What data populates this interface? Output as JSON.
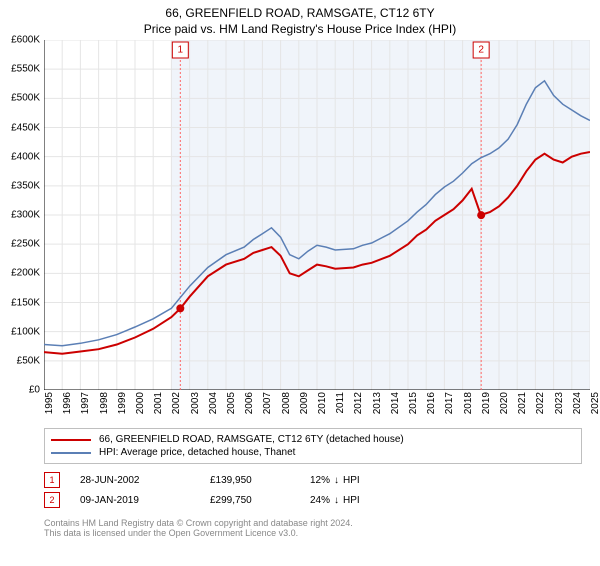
{
  "title": "66, GREENFIELD ROAD, RAMSGATE, CT12 6TY",
  "subtitle": "Price paid vs. HM Land Registry's House Price Index (HPI)",
  "chart": {
    "type": "line",
    "background_color": "#ffffff",
    "plot_background_color": "#f0f4fa",
    "plot_background_start_year": 2002,
    "grid_color": "#e5e5e5",
    "axis_color": "#000000",
    "ylim": [
      0,
      600000
    ],
    "ytick_step": 50000,
    "y_tick_labels": [
      "£0",
      "£50K",
      "£100K",
      "£150K",
      "£200K",
      "£250K",
      "£300K",
      "£350K",
      "£400K",
      "£450K",
      "£500K",
      "£550K",
      "£600K"
    ],
    "x_years": [
      1995,
      1996,
      1997,
      1998,
      1999,
      2000,
      2001,
      2002,
      2003,
      2004,
      2005,
      2006,
      2007,
      2008,
      2009,
      2010,
      2011,
      2012,
      2013,
      2014,
      2015,
      2016,
      2017,
      2018,
      2019,
      2020,
      2021,
      2022,
      2023,
      2024,
      2025
    ],
    "xlim": [
      1995,
      2025
    ],
    "series": [
      {
        "name": "property",
        "label": "66, GREENFIELD ROAD, RAMSGATE, CT12 6TY (detached house)",
        "color": "#cc0000",
        "line_width": 2,
        "points": [
          [
            1995,
            65000
          ],
          [
            1996,
            62000
          ],
          [
            1997,
            66000
          ],
          [
            1998,
            70000
          ],
          [
            1999,
            78000
          ],
          [
            2000,
            90000
          ],
          [
            2001,
            105000
          ],
          [
            2002,
            125000
          ],
          [
            2002.5,
            140000
          ],
          [
            2003,
            160000
          ],
          [
            2004,
            195000
          ],
          [
            2005,
            215000
          ],
          [
            2006,
            225000
          ],
          [
            2006.5,
            235000
          ],
          [
            2007,
            240000
          ],
          [
            2007.5,
            245000
          ],
          [
            2008,
            230000
          ],
          [
            2008.5,
            200000
          ],
          [
            2009,
            195000
          ],
          [
            2009.5,
            205000
          ],
          [
            2010,
            215000
          ],
          [
            2010.5,
            212000
          ],
          [
            2011,
            208000
          ],
          [
            2012,
            210000
          ],
          [
            2012.5,
            215000
          ],
          [
            2013,
            218000
          ],
          [
            2014,
            230000
          ],
          [
            2015,
            250000
          ],
          [
            2015.5,
            265000
          ],
          [
            2016,
            275000
          ],
          [
            2016.5,
            290000
          ],
          [
            2017,
            300000
          ],
          [
            2017.5,
            310000
          ],
          [
            2018,
            325000
          ],
          [
            2018.5,
            345000
          ],
          [
            2019,
            300000
          ],
          [
            2019.5,
            305000
          ],
          [
            2020,
            315000
          ],
          [
            2020.5,
            330000
          ],
          [
            2021,
            350000
          ],
          [
            2021.5,
            375000
          ],
          [
            2022,
            395000
          ],
          [
            2022.5,
            405000
          ],
          [
            2023,
            395000
          ],
          [
            2023.5,
            390000
          ],
          [
            2024,
            400000
          ],
          [
            2024.5,
            405000
          ],
          [
            2025,
            408000
          ]
        ]
      },
      {
        "name": "hpi",
        "label": "HPI: Average price, detached house, Thanet",
        "color": "#5b7fb5",
        "line_width": 1.5,
        "points": [
          [
            1995,
            78000
          ],
          [
            1996,
            76000
          ],
          [
            1997,
            80000
          ],
          [
            1998,
            86000
          ],
          [
            1999,
            95000
          ],
          [
            2000,
            108000
          ],
          [
            2001,
            122000
          ],
          [
            2002,
            140000
          ],
          [
            2003,
            178000
          ],
          [
            2004,
            210000
          ],
          [
            2005,
            232000
          ],
          [
            2006,
            245000
          ],
          [
            2006.5,
            258000
          ],
          [
            2007,
            268000
          ],
          [
            2007.5,
            278000
          ],
          [
            2008,
            262000
          ],
          [
            2008.5,
            232000
          ],
          [
            2009,
            225000
          ],
          [
            2009.5,
            238000
          ],
          [
            2010,
            248000
          ],
          [
            2010.5,
            245000
          ],
          [
            2011,
            240000
          ],
          [
            2012,
            242000
          ],
          [
            2012.5,
            248000
          ],
          [
            2013,
            252000
          ],
          [
            2014,
            268000
          ],
          [
            2015,
            290000
          ],
          [
            2015.5,
            305000
          ],
          [
            2016,
            318000
          ],
          [
            2016.5,
            335000
          ],
          [
            2017,
            348000
          ],
          [
            2017.5,
            358000
          ],
          [
            2018,
            372000
          ],
          [
            2018.5,
            388000
          ],
          [
            2019,
            398000
          ],
          [
            2019.5,
            405000
          ],
          [
            2020,
            415000
          ],
          [
            2020.5,
            430000
          ],
          [
            2021,
            455000
          ],
          [
            2021.5,
            490000
          ],
          [
            2022,
            518000
          ],
          [
            2022.5,
            530000
          ],
          [
            2023,
            505000
          ],
          [
            2023.5,
            490000
          ],
          [
            2024,
            480000
          ],
          [
            2024.5,
            470000
          ],
          [
            2025,
            462000
          ]
        ]
      }
    ],
    "sales": [
      {
        "n": "1",
        "year": 2002.49,
        "price": 139950,
        "date": "28-JUN-2002",
        "pct": "12%",
        "dir": "↓",
        "dir_label": "HPI"
      },
      {
        "n": "2",
        "year": 2019.02,
        "price": 299750,
        "date": "09-JAN-2019",
        "pct": "24%",
        "dir": "↓",
        "dir_label": "HPI"
      }
    ],
    "sale_marker_color": "#cc0000",
    "sale_marker_radius": 4,
    "sale_line_color": "#ff6666",
    "sale_box_border": "#cc0000",
    "sale_box_bg": "#ffffff",
    "label_fontsize": 10
  },
  "legend": {
    "series": [
      {
        "color": "#cc0000",
        "label": "66, GREENFIELD ROAD, RAMSGATE, CT12 6TY (detached house)"
      },
      {
        "color": "#5b7fb5",
        "label": "HPI: Average price, detached house, Thanet"
      }
    ]
  },
  "sales_table": {
    "rows": [
      {
        "n": "1",
        "date": "28-JUN-2002",
        "price": "£139,950",
        "pct": "12%",
        "dir": "↓",
        "dir_label": "HPI"
      },
      {
        "n": "2",
        "date": "09-JAN-2019",
        "price": "£299,750",
        "pct": "24%",
        "dir": "↓",
        "dir_label": "HPI"
      }
    ],
    "box_border": "#cc0000",
    "box_text": "#cc0000"
  },
  "footnote_l1": "Contains HM Land Registry data © Crown copyright and database right 2024.",
  "footnote_l2": "This data is licensed under the Open Government Licence v3.0."
}
